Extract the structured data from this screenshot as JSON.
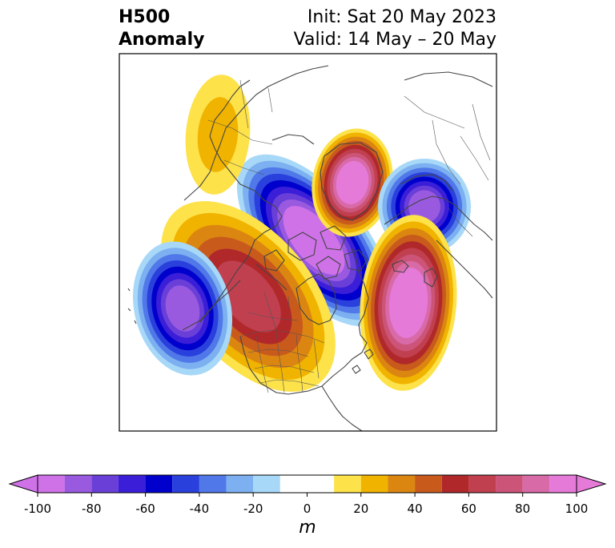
{
  "title": {
    "left_line1": "H500",
    "left_line2": "Anomaly",
    "right_line1": "Init: Sat 20 May 2023",
    "right_line2": "Valid: 14 May – 20 May"
  },
  "colorbar": {
    "unit": "m",
    "min": -100,
    "max": 100,
    "ticks": [
      "-100",
      "-80",
      "-60",
      "-40",
      "-20",
      "0",
      "20",
      "40",
      "60",
      "80",
      "100"
    ],
    "tick_values": [
      -100,
      -80,
      -60,
      -40,
      -20,
      0,
      20,
      40,
      60,
      80,
      100
    ],
    "extend": "both",
    "bins": [
      {
        "lo": -100,
        "hi": -90,
        "color": "#cf72e8"
      },
      {
        "lo": -90,
        "hi": -80,
        "color": "#9a5ae0"
      },
      {
        "lo": -80,
        "hi": -70,
        "color": "#6a3fd8"
      },
      {
        "lo": -70,
        "hi": -60,
        "color": "#3a1ed8"
      },
      {
        "lo": -60,
        "hi": -50,
        "color": "#0000cc"
      },
      {
        "lo": -50,
        "hi": -40,
        "color": "#2a40dc"
      },
      {
        "lo": -40,
        "hi": -30,
        "color": "#5078e8"
      },
      {
        "lo": -30,
        "hi": -20,
        "color": "#7cb0f0"
      },
      {
        "lo": -20,
        "hi": -10,
        "color": "#a8d8f8"
      },
      {
        "lo": -10,
        "hi": 10,
        "color": "#ffffff"
      },
      {
        "lo": 10,
        "hi": 20,
        "color": "#fde24a"
      },
      {
        "lo": 20,
        "hi": 30,
        "color": "#f0b300"
      },
      {
        "lo": 30,
        "hi": 40,
        "color": "#dc8612"
      },
      {
        "lo": 40,
        "hi": 50,
        "color": "#c85a1c"
      },
      {
        "lo": 50,
        "hi": 60,
        "color": "#b0282a"
      },
      {
        "lo": 60,
        "hi": 70,
        "color": "#c04050"
      },
      {
        "lo": 70,
        "hi": 80,
        "color": "#cc5478"
      },
      {
        "lo": 80,
        "hi": 90,
        "color": "#d86aa8"
      },
      {
        "lo": 90,
        "hi": 100,
        "color": "#e57ad8"
      }
    ],
    "under_color": "#cf72e8",
    "over_color": "#e57ad8"
  },
  "map": {
    "projection": "polar-stereographic",
    "region": "North America / North Atlantic",
    "anomaly_centers": [
      {
        "name": "arctic-canada-trough",
        "value": -100
      },
      {
        "name": "greenland-ridge",
        "value": 100
      },
      {
        "name": "scandinavia-trough",
        "value": -80
      },
      {
        "name": "north-atlantic-ridge",
        "value": 100
      },
      {
        "name": "canada-ridge",
        "value": 60
      },
      {
        "name": "north-pacific-trough",
        "value": -80
      },
      {
        "name": "alaska-ridge",
        "value": 20
      }
    ]
  }
}
